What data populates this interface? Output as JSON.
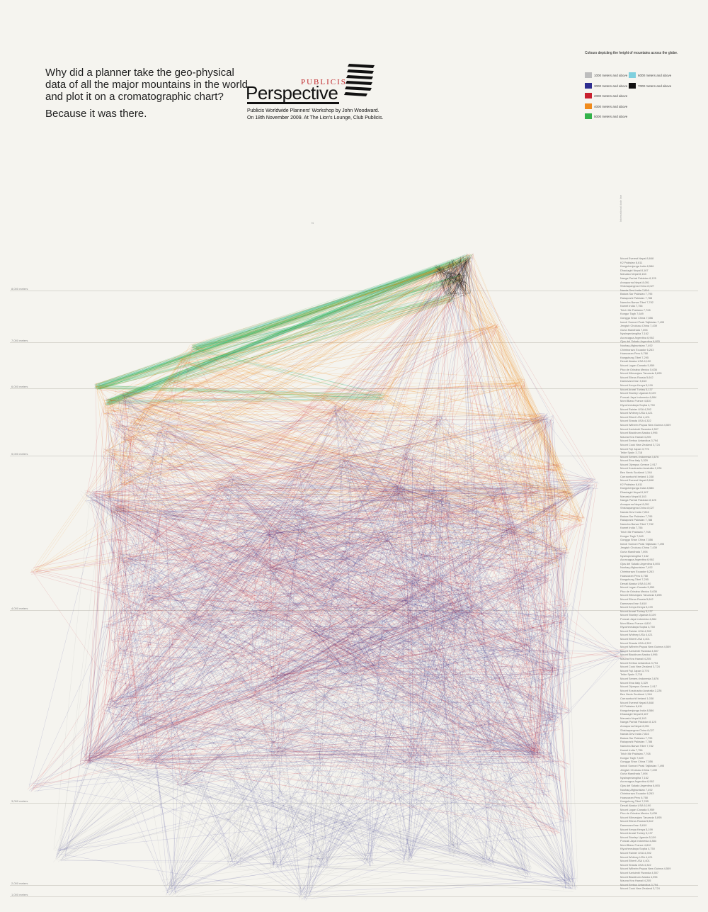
{
  "intro": {
    "question_line1": "Why did a planner take the geo-physical",
    "question_line2": "data of all the major mountains in the world",
    "question_line3": "and plot it on a cromatographic chart?",
    "answer": "Because it was there."
  },
  "logo": {
    "brand": "PUBLICIS",
    "title": "Perspective"
  },
  "event": {
    "line1": "Publicis Worldwide Planners' Workshop by John Woodward.",
    "line2": "On 18th November 2009. At The Lion's Lounge, Club Publicis."
  },
  "legend": {
    "title": "Colours depicting the height of mountains across the globe.",
    "items": [
      {
        "label": "1000 meters and above",
        "color": "#bdbdbd"
      },
      {
        "label": "6000 meters and above",
        "color": "#7fd0de"
      },
      {
        "label": "3000 meters and above",
        "color": "#2d2d8f"
      },
      {
        "label": "7000 meters and above",
        "color": "#111111"
      },
      {
        "label": "2000 meters and above",
        "color": "#c8202e"
      },
      {
        "label": "4000 meters and above",
        "color": "#f08b1c"
      },
      {
        "label": "5000 meters and above",
        "color": "#33b24a"
      }
    ]
  },
  "axis": {
    "y_labels": [
      "8,000 meters",
      "7,000 meters",
      "6,000 meters",
      "5,000 meters",
      "4,000 meters",
      "3,000 meters",
      "2,000 meters",
      "1,000 meters"
    ],
    "top_marker": "N",
    "side_note": "International date line"
  },
  "chart_data": {
    "type": "network",
    "unit": "meters",
    "nodes": [
      {
        "id": "west-low",
        "height": 4000
      },
      {
        "id": "west-base",
        "height": 2900
      },
      {
        "id": "west-peak",
        "height": 6000
      },
      {
        "id": "asia-peak",
        "height": 7100
      },
      {
        "id": "everest",
        "height": 8848
      },
      {
        "id": "east-hub",
        "height": 3900
      },
      {
        "id": "east-base",
        "height": 1200
      }
    ]
  },
  "mountain_list": [
    "Mount Everest Nepal 8,848",
    "K2 Pakistan 8,611",
    "Kangchenjunga India 8,586",
    "Dhaulagiri Nepal 8,167",
    "Manaslu Nepal 8,163",
    "Nanga Parbat Pakistan 8,125",
    "Annapurna Nepal 8,091",
    "Shishapangma China 8,027",
    "Nanda Devi India 7,816",
    "Batura Sar Pakistan 7,795",
    "Rakaposhi Pakistan 7,788",
    "Namcha Barwa Tibet 7,782",
    "Kamet India 7,756",
    "Tirich Mir Pakistan 7,708",
    "Kongur Tagh 7,649",
    "Gongga Shan China 7,556",
    "Ismoil Somoni Peak Tajikistan 7,495",
    "Jengish Chokusu China 7,439",
    "Gurla Mandhata 7,694",
    "Nyainqentanglha 7,162",
    "Aconcagua Argentina 6,962",
    "Ojos del Salado Argentina 6,893",
    "Noshaq Afghanistan 7,492",
    "Chimborazo Ecuador 6,263",
    "Huascaran Peru 6,768",
    "Kangshung Tibet 7,295",
    "Denali Alaska USA 6,190",
    "Mount Logan Canada 5,959",
    "Pico de Orizaba Mexico 5,636",
    "Mount Kilimanjaro Tanzania 5,895",
    "Mount Elbrus Russia 5,642",
    "Damavand Iran 5,610",
    "Mount Kenya Kenya 5,199",
    "Mount Ararat Turkey 5,137",
    "Mount Stanley Uganda 5,109",
    "Puncak Jaya Indonesia 4,884",
    "Mont Blanc France 4,810",
    "Klyuchevskaya Sopka 4,750",
    "Mount Rainier USA 4,392",
    "Mount Whitney USA 4,421",
    "Mount Elbert USA 4,401",
    "Mount Shasta USA 4,322",
    "Mount Wilhelm Papua New Guinea 4,509",
    "Mount Karisimbi Rwanda 4,507",
    "Mount Blackburn Alaska 4,996",
    "Mauna Kea Hawaii 4,205",
    "Mount Erebus Antarctica 3,794",
    "Mount Cook New Zealand 3,724",
    "Mount Fuji Japan 3,776",
    "Teide Spain 3,718",
    "Mount Semeru Indonesia 3,676",
    "Mount Etna Italy 3,329",
    "Mount Olympus Greece 2,917",
    "Mount Kosciuszko Australia 2,228",
    "Ben Nevis Scotland 1,344",
    "Carrauntoohil Ireland 1,038"
  ]
}
